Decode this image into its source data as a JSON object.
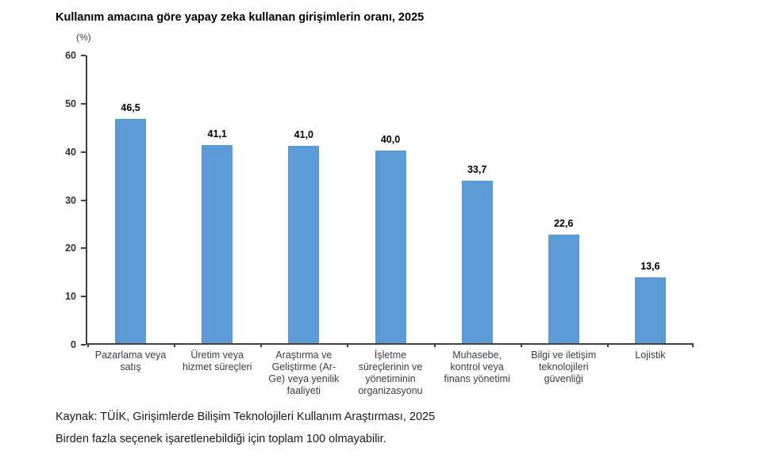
{
  "title": "Kullanım amacına göre yapay zeka kullanan girişimlerin oranı, 2025",
  "unit_label": "(%)",
  "chart_data": {
    "type": "bar",
    "title": "Kullanım amacına göre yapay zeka kullanan girişimlerin oranı, 2025",
    "categories": [
      "Pazarlama veya satış",
      "Üretim veya hizmet süreçleri",
      "Araştırma ve Geliştirme (Ar-Ge) veya yenilik faaliyeti",
      "İşletme süreçlerinin ve yönetiminin organizasyonu",
      "Muhasebe, kontrol veya finans yönetimi",
      "Bilgi ve iletişim teknolojileri güvenliği",
      "Lojistik"
    ],
    "category_labels_wrapped": [
      "Pazarlama veya\nsatış",
      "Üretim veya\nhizmet süreçleri",
      "Araştırma ve\nGeliştirme (Ar-\nGe) veya yenilik\nfaaliyeti",
      "İşletme\nsüreçlerinin ve\nyönetiminin\norganizasyonu",
      "Muhasebe,\nkontrol veya\nfinans yönetimi",
      "Bilgi ve iletişim\nteknolojileri\ngüvenliği",
      "Lojistik"
    ],
    "values": [
      46.5,
      41.1,
      41.0,
      40.0,
      33.7,
      22.6,
      13.6
    ],
    "value_labels": [
      "46,5",
      "41,1",
      "41,0",
      "40,0",
      "33,7",
      "22,6",
      "13,6"
    ],
    "xlabel": "",
    "ylabel": "(%)",
    "ylim": [
      0,
      60
    ],
    "yticks": [
      0,
      10,
      20,
      30,
      40,
      50,
      60
    ],
    "grid": false,
    "legend": "none",
    "bar_color": "#5B9BD5",
    "axis_color": "#404040"
  },
  "footer": {
    "source": "Kaynak: TÜİK, Girişimlerde Bilişim Teknolojileri Kullanım Araştırması, 2025",
    "note": "Birden fazla seçenek işaretlenebildiği için toplam 100 olmayabilir."
  }
}
